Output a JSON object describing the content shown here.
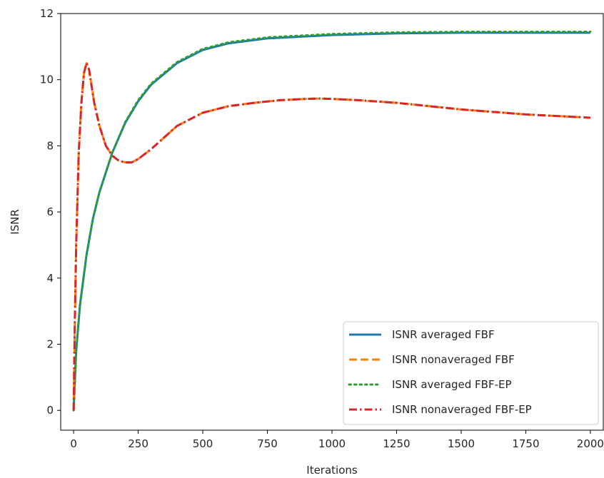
{
  "chart_data": {
    "type": "line",
    "title": "",
    "xlabel": "Iterations",
    "ylabel": "ISNR",
    "xlim": [
      -50,
      2050
    ],
    "ylim": [
      -0.6,
      12
    ],
    "xticks": [
      0,
      250,
      500,
      750,
      1000,
      1250,
      1500,
      1750,
      2000
    ],
    "yticks": [
      0,
      2,
      4,
      6,
      8,
      10,
      12
    ],
    "xtick_labels": [
      "0",
      "250",
      "500",
      "750",
      "1000",
      "1250",
      "1500",
      "1750",
      "2000"
    ],
    "ytick_labels": [
      "0",
      "2",
      "4",
      "6",
      "8",
      "10",
      "12"
    ],
    "grid": false,
    "legend_position": "lower-right",
    "series": [
      {
        "name": "ISNR averaged FBF",
        "color": "#1f77b4",
        "style": "solid",
        "x": [
          0,
          10,
          25,
          50,
          75,
          100,
          150,
          200,
          250,
          300,
          400,
          500,
          600,
          750,
          1000,
          1250,
          1500,
          1750,
          2000
        ],
        "y": [
          0,
          1.8,
          3.2,
          4.7,
          5.8,
          6.6,
          7.8,
          8.7,
          9.35,
          9.85,
          10.5,
          10.9,
          11.1,
          11.25,
          11.35,
          11.4,
          11.42,
          11.42,
          11.42
        ]
      },
      {
        "name": "ISNR nonaveraged FBF",
        "color": "#ff7f0e",
        "style": "dashed",
        "x": [
          0,
          5,
          10,
          20,
          30,
          40,
          50,
          60,
          70,
          80,
          100,
          125,
          150,
          175,
          200,
          225,
          250,
          300,
          400,
          500,
          600,
          700,
          800,
          900,
          950,
          1000,
          1100,
          1250,
          1500,
          1750,
          2000
        ],
        "y": [
          0,
          2.8,
          5.0,
          7.8,
          9.3,
          10.2,
          10.5,
          10.3,
          9.8,
          9.3,
          8.6,
          8.0,
          7.7,
          7.55,
          7.5,
          7.5,
          7.6,
          7.9,
          8.6,
          9.0,
          9.2,
          9.3,
          9.38,
          9.42,
          9.43,
          9.42,
          9.38,
          9.3,
          9.1,
          8.95,
          8.85
        ]
      },
      {
        "name": "ISNR averaged FBF-EP",
        "color": "#2ca02c",
        "style": "dotted",
        "x": [
          0,
          10,
          25,
          50,
          75,
          100,
          150,
          200,
          250,
          300,
          400,
          500,
          600,
          750,
          1000,
          1250,
          1500,
          1750,
          2000
        ],
        "y": [
          0,
          1.8,
          3.2,
          4.7,
          5.8,
          6.6,
          7.8,
          8.72,
          9.38,
          9.88,
          10.53,
          10.93,
          11.13,
          11.28,
          11.38,
          11.43,
          11.45,
          11.45,
          11.45
        ]
      },
      {
        "name": "ISNR nonaveraged FBF-EP",
        "color": "#d62728",
        "style": "dashdot",
        "x": [
          0,
          5,
          10,
          20,
          30,
          40,
          50,
          60,
          70,
          80,
          100,
          125,
          150,
          175,
          200,
          225,
          250,
          300,
          400,
          500,
          600,
          700,
          800,
          900,
          950,
          1000,
          1100,
          1250,
          1500,
          1750,
          2000
        ],
        "y": [
          0,
          2.8,
          5.0,
          7.8,
          9.3,
          10.2,
          10.5,
          10.3,
          9.8,
          9.3,
          8.6,
          8.0,
          7.7,
          7.55,
          7.5,
          7.5,
          7.6,
          7.9,
          8.6,
          9.0,
          9.2,
          9.3,
          9.38,
          9.42,
          9.43,
          9.42,
          9.38,
          9.3,
          9.1,
          8.95,
          8.85
        ]
      }
    ]
  }
}
